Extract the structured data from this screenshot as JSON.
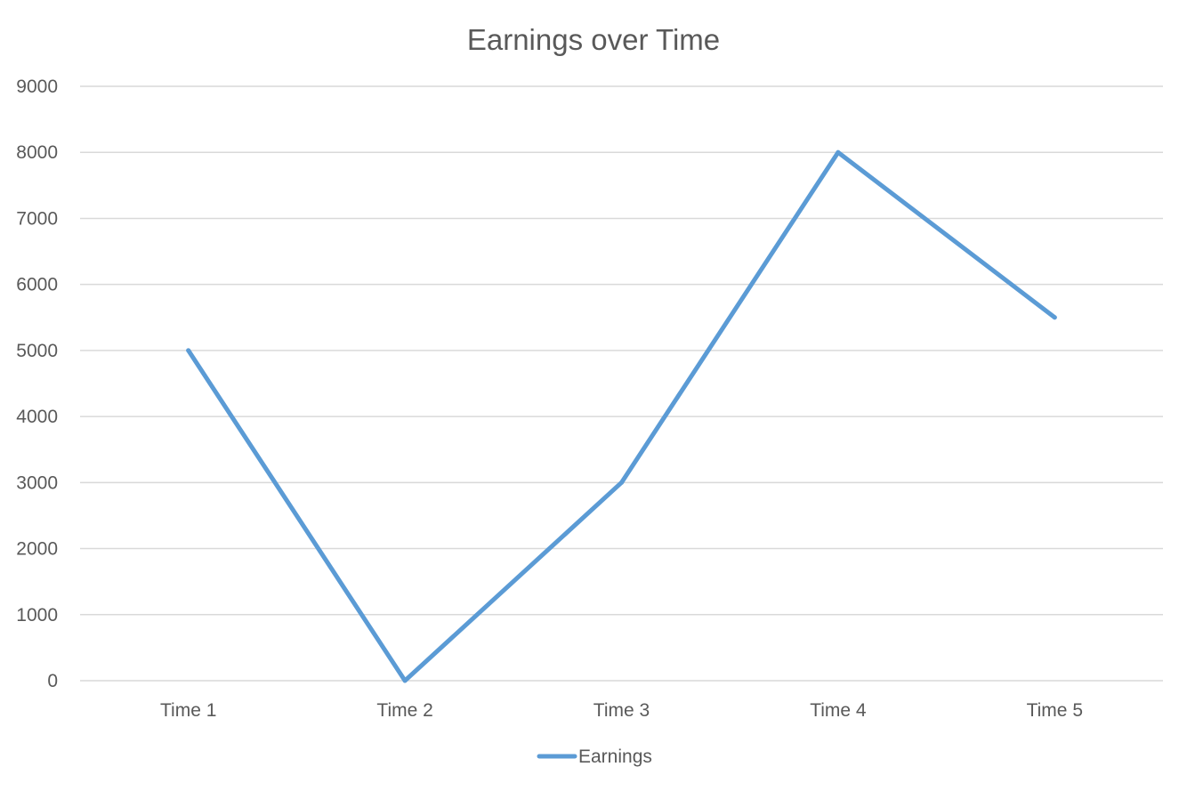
{
  "chart_data": {
    "type": "line",
    "title": "Earnings over Time",
    "xlabel": "",
    "ylabel": "",
    "categories": [
      "Time 1",
      "Time 2",
      "Time 3",
      "Time 4",
      "Time 5"
    ],
    "series": [
      {
        "name": "Earnings",
        "values": [
          5000,
          0,
          3000,
          8000,
          5500
        ],
        "color": "#5b9bd5"
      }
    ],
    "ylim": [
      0,
      9000
    ],
    "yticks": [
      "0",
      "1000",
      "2000",
      "3000",
      "4000",
      "5000",
      "6000",
      "7000",
      "8000",
      "9000"
    ],
    "grid": true,
    "legend_position": "bottom"
  }
}
